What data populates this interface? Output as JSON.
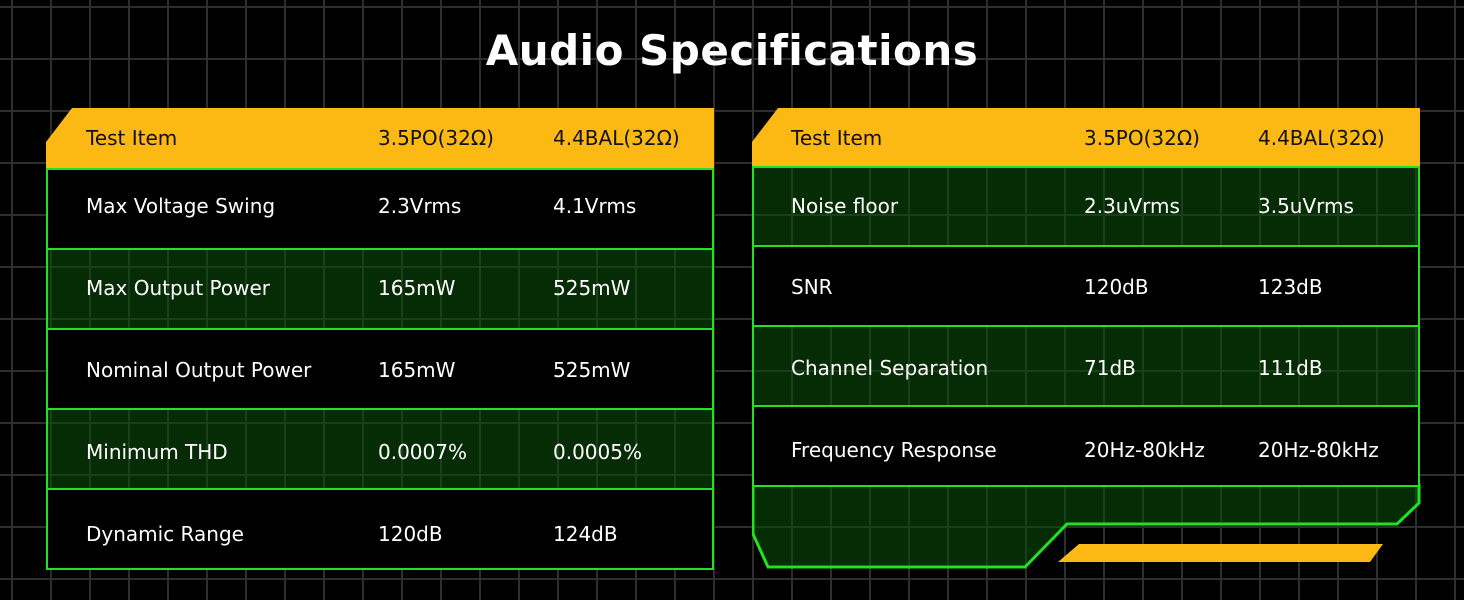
{
  "title": "Audio Specifications",
  "colors": {
    "header": "#fdb913",
    "border": "#22e022",
    "row_green": "#033a03",
    "background": "#000000"
  },
  "left_table": {
    "headers": [
      "Test Item",
      "3.5PO(32Ω)",
      "4.4BAL(32Ω)"
    ],
    "rows": [
      [
        "Max Voltage Swing",
        "2.3Vrms",
        "4.1Vrms"
      ],
      [
        "Max Output Power",
        "165mW",
        "525mW"
      ],
      [
        "Nominal Output Power",
        "165mW",
        "525mW"
      ],
      [
        "Minimum THD",
        "0.0007%",
        "0.0005%"
      ],
      [
        "Dynamic Range",
        "120dB",
        "124dB"
      ]
    ]
  },
  "right_table": {
    "headers": [
      "Test Item",
      "3.5PO(32Ω)",
      "4.4BAL(32Ω)"
    ],
    "rows": [
      [
        "Noise floor",
        "2.3uVrms",
        "3.5uVrms"
      ],
      [
        "SNR",
        "120dB",
        "123dB"
      ],
      [
        "Channel Separation",
        "71dB",
        "111dB"
      ],
      [
        "Frequency Response",
        "20Hz-80kHz",
        "20Hz-80kHz"
      ]
    ]
  }
}
